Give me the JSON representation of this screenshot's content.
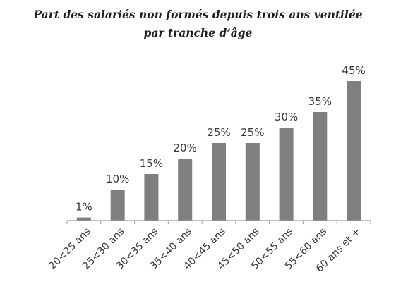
{
  "chart_data": {
    "type": "bar",
    "title": "Part des salariés non formés depuis trois ans ventilée",
    "subtitle": "par tranche d’âge",
    "categories": [
      "20<25 ans",
      "25<30 ans",
      "30<35 ans",
      "35<40 ans",
      "40<45 ans",
      "45<50 ans",
      "50<55 ans",
      "55<60 ans",
      "60 ans et +"
    ],
    "values": [
      1,
      10,
      15,
      20,
      25,
      25,
      30,
      35,
      45
    ],
    "data_labels": [
      "1%",
      "10%",
      "15%",
      "20%",
      "25%",
      "25%",
      "30%",
      "35%",
      "45%"
    ],
    "ylim": [
      0,
      45
    ],
    "grid": false,
    "legend": "none",
    "bar_color": "#7f7f81",
    "axis_color": "#9a9a9a"
  }
}
